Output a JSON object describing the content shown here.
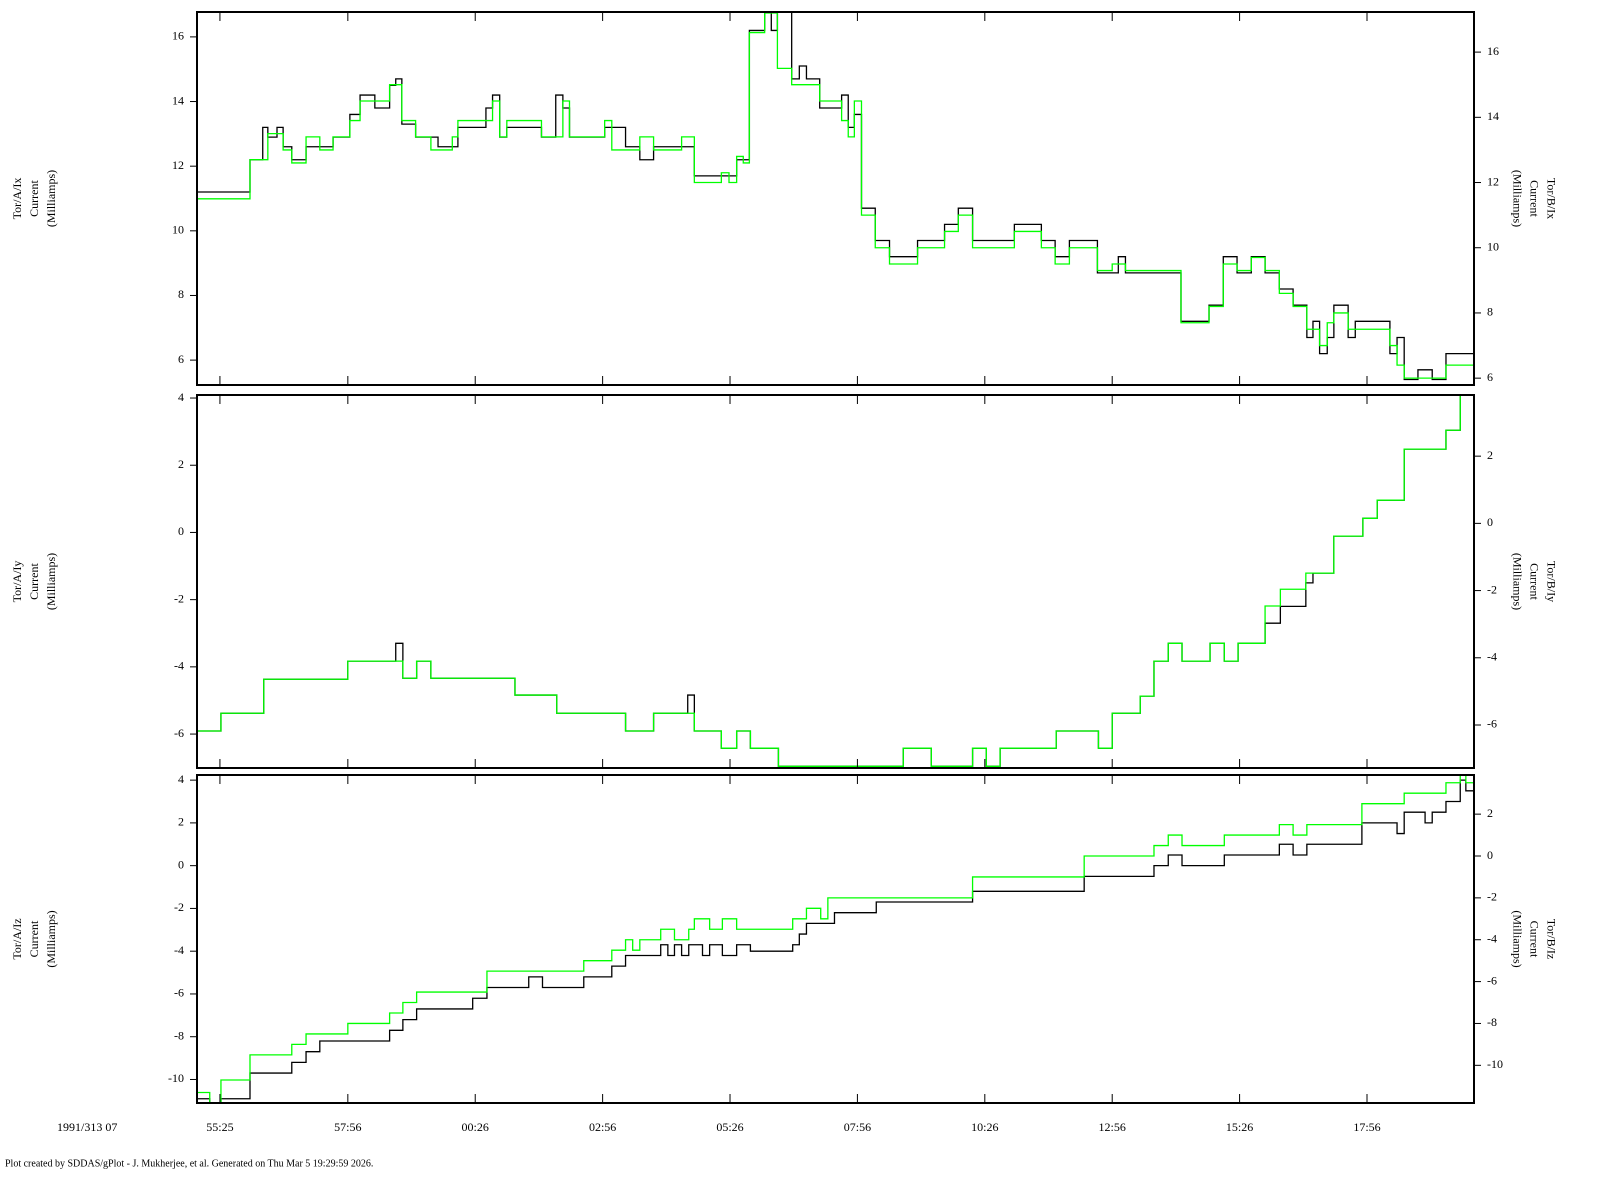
{
  "chart_data": [
    {
      "type": "line",
      "step": true,
      "ylabel": [
        "Tor/A/Ix",
        "Current",
        "(Milliamps)"
      ],
      "y2label": [
        "Tor/B/Ix",
        "Current",
        "(Milliamps)"
      ],
      "xlim": [
        54.97,
        80.03
      ],
      "ylim": [
        5.23,
        16.77
      ],
      "yticks": [
        6,
        8,
        10,
        12,
        14,
        16
      ],
      "y2lim": [
        5.79,
        17.23
      ],
      "y2ticks": [
        6,
        8,
        10,
        12,
        14,
        16
      ],
      "series": [
        {
          "color": "#000000",
          "x": [
            54.97,
            56.01,
            56.26,
            56.36,
            56.54,
            56.66,
            56.83,
            57.11,
            57.64,
            57.97,
            58.17,
            58.46,
            58.75,
            58.87,
            58.99,
            59.26,
            59.7,
            60.09,
            60.64,
            60.77,
            60.91,
            61.05,
            61.73,
            62.01,
            62.15,
            62.28,
            62.97,
            63.38,
            63.66,
            63.93,
            64.73,
            65.56,
            65.81,
            66.11,
            66.24,
            66.36,
            66.64,
            66.79,
            66.93,
            67.19,
            67.62,
            67.75,
            67.87,
            68.01,
            68.28,
            68.56,
            69.11,
            69.64,
            69.91,
            70.19,
            71.01,
            71.54,
            71.81,
            72.09,
            72.64,
            73.05,
            73.19,
            74.28,
            74.83,
            75.11,
            75.38,
            75.66,
            75.93,
            76.21,
            76.48,
            76.75,
            76.87,
            77.0,
            77.15,
            77.28,
            77.56,
            77.7,
            78.38,
            78.52,
            78.66,
            78.93,
            79.21,
            79.48,
            80.03
          ],
          "values": [
            11.2,
            12.2,
            13.2,
            12.9,
            13.2,
            12.6,
            12.2,
            12.6,
            12.9,
            13.6,
            14.2,
            13.8,
            14.5,
            14.7,
            13.3,
            12.9,
            12.6,
            13.2,
            13.8,
            14.2,
            12.9,
            13.2,
            12.9,
            14.2,
            13.8,
            12.9,
            13.2,
            12.6,
            12.2,
            12.6,
            11.7,
            12.2,
            16.2,
            16.9,
            16.2,
            16.9,
            14.7,
            15.1,
            14.7,
            13.8,
            14.2,
            13.2,
            13.6,
            10.7,
            9.7,
            9.2,
            9.7,
            10.2,
            10.7,
            9.7,
            10.2,
            9.7,
            9.2,
            9.7,
            8.7,
            9.2,
            8.7,
            7.2,
            7.7,
            9.2,
            8.7,
            9.2,
            8.7,
            8.2,
            7.7,
            6.7,
            7.2,
            6.2,
            6.7,
            7.7,
            6.7,
            7.2,
            6.2,
            6.7,
            5.4,
            5.7,
            5.4,
            6.2,
            6.2
          ]
        },
        {
          "color": "#00ff00",
          "axis": "y2",
          "x": [
            54.97,
            56.01,
            56.36,
            56.66,
            56.83,
            57.11,
            57.38,
            57.64,
            57.97,
            58.17,
            58.75,
            58.99,
            59.26,
            59.56,
            59.98,
            60.09,
            60.77,
            60.91,
            61.05,
            61.73,
            62.15,
            62.28,
            62.97,
            63.11,
            63.66,
            63.93,
            64.48,
            64.73,
            65.26,
            65.41,
            65.56,
            65.69,
            65.81,
            66.11,
            66.36,
            66.64,
            67.19,
            67.62,
            67.75,
            67.87,
            68.01,
            68.28,
            68.56,
            69.11,
            69.64,
            69.91,
            70.19,
            71.01,
            71.54,
            71.81,
            72.09,
            72.64,
            72.93,
            73.19,
            74.28,
            74.83,
            75.11,
            75.38,
            75.66,
            75.93,
            76.21,
            76.48,
            76.75,
            77.0,
            77.15,
            77.28,
            77.56,
            78.38,
            78.52,
            78.66,
            79.48,
            80.03
          ],
          "values": [
            11.5,
            12.7,
            13.5,
            13.0,
            12.6,
            13.4,
            13.0,
            13.4,
            13.9,
            14.5,
            15.0,
            13.9,
            13.4,
            13.0,
            13.4,
            13.9,
            14.5,
            13.4,
            13.9,
            13.4,
            14.5,
            13.4,
            13.9,
            13.0,
            13.4,
            13.0,
            13.4,
            12.0,
            12.3,
            12.0,
            12.8,
            12.6,
            16.6,
            17.2,
            15.5,
            15.0,
            14.5,
            13.9,
            13.4,
            14.5,
            11.0,
            10.0,
            9.5,
            10.0,
            10.5,
            11.0,
            10.0,
            10.5,
            10.0,
            9.5,
            10.0,
            9.3,
            9.5,
            9.3,
            7.7,
            8.2,
            9.5,
            9.3,
            9.7,
            9.3,
            8.6,
            8.2,
            7.5,
            7.0,
            7.7,
            8.0,
            7.5,
            7.0,
            6.4,
            6.0,
            6.4,
            6.4
          ]
        }
      ]
    },
    {
      "type": "line",
      "step": true,
      "ylabel": [
        "Tor/A/Iy",
        "Current",
        "(Milliamps)"
      ],
      "y2label": [
        "Tor/B/Iy",
        "Current",
        "(Milliamps)"
      ],
      "xlim": [
        54.97,
        80.03
      ],
      "ylim": [
        -7.01,
        4.09
      ],
      "yticks": [
        -6,
        -4,
        -2,
        0,
        2,
        4
      ],
      "y2lim": [
        -7.28,
        3.82
      ],
      "y2ticks": [
        -6,
        -4,
        -2,
        0,
        2
      ],
      "series": [
        {
          "color": "#000000",
          "x": [
            54.97,
            55.44,
            56.28,
            57.93,
            58.87,
            59.01,
            59.28,
            59.56,
            61.21,
            62.03,
            63.38,
            63.93,
            64.6,
            64.73,
            65.26,
            65.56,
            65.83,
            66.38,
            68.83,
            69.38,
            70.19,
            70.46,
            70.73,
            71.83,
            72.66,
            72.93,
            73.48,
            73.75,
            74.03,
            74.3,
            74.85,
            75.13,
            75.4,
            75.93,
            76.23,
            76.73,
            76.87,
            77.28,
            77.85,
            78.13,
            78.66,
            79.48,
            79.76,
            80.03
          ],
          "values": [
            -5.91,
            -5.38,
            -4.37,
            -3.83,
            -3.3,
            -4.34,
            -3.83,
            -4.34,
            -4.84,
            -5.38,
            -5.91,
            -5.38,
            -4.84,
            -5.91,
            -6.42,
            -5.91,
            -6.42,
            -6.96,
            -6.42,
            -6.96,
            -6.42,
            -6.96,
            -6.42,
            -5.91,
            -6.42,
            -5.38,
            -4.87,
            -3.83,
            -3.3,
            -3.83,
            -3.3,
            -3.83,
            -3.3,
            -2.7,
            -2.2,
            -1.5,
            -1.21,
            -0.11,
            0.42,
            0.96,
            2.48,
            3.04,
            4.09,
            4.09
          ]
        },
        {
          "color": "#00ff00",
          "axis": "y2",
          "x": [
            54.97,
            55.44,
            56.28,
            57.93,
            59.01,
            59.28,
            59.56,
            61.21,
            62.03,
            63.38,
            63.93,
            64.73,
            65.26,
            65.56,
            65.83,
            66.38,
            68.83,
            69.38,
            70.19,
            70.46,
            70.73,
            71.83,
            72.66,
            72.93,
            73.48,
            73.75,
            74.03,
            74.3,
            74.85,
            75.13,
            75.4,
            75.93,
            76.23,
            76.73,
            77.28,
            77.85,
            78.13,
            78.66,
            79.48,
            79.76,
            80.03
          ],
          "values": [
            -6.18,
            -5.65,
            -4.64,
            -4.1,
            -4.61,
            -4.1,
            -4.61,
            -5.11,
            -5.65,
            -6.18,
            -5.65,
            -6.18,
            -6.69,
            -6.18,
            -6.69,
            -7.23,
            -6.69,
            -7.23,
            -6.69,
            -7.23,
            -6.69,
            -6.18,
            -6.69,
            -5.65,
            -5.14,
            -4.1,
            -3.57,
            -4.1,
            -3.57,
            -4.1,
            -3.57,
            -2.46,
            -1.96,
            -1.48,
            -0.38,
            0.15,
            0.69,
            2.21,
            2.77,
            3.82,
            3.82
          ]
        }
      ]
    },
    {
      "type": "line",
      "step": true,
      "ylabel": [
        "Tor/A/Iz",
        "Current",
        "(Milliamps)"
      ],
      "y2label": [
        "Tor/B/Iz",
        "Current",
        "(Milliamps)"
      ],
      "xlim": [
        54.97,
        80.03
      ],
      "ylim": [
        -11.1,
        4.24
      ],
      "yticks": [
        -10,
        -8,
        -6,
        -4,
        -2,
        0,
        2,
        4
      ],
      "y2lim": [
        -11.8,
        3.87
      ],
      "y2ticks": [
        -10,
        -8,
        -6,
        -4,
        -2,
        0,
        2
      ],
      "xticks": [
        {
          "value": 55.42,
          "label": "55:25"
        },
        {
          "value": 57.93,
          "label": "57:56"
        },
        {
          "value": 60.43,
          "label": "00:26"
        },
        {
          "value": 62.93,
          "label": "02:56"
        },
        {
          "value": 65.43,
          "label": "05:26"
        },
        {
          "value": 67.93,
          "label": "07:56"
        },
        {
          "value": 70.43,
          "label": "10:26"
        },
        {
          "value": 72.93,
          "label": "12:56"
        },
        {
          "value": 75.43,
          "label": "15:26"
        },
        {
          "value": 77.93,
          "label": "17:56"
        }
      ],
      "series": [
        {
          "color": "#000000",
          "x": [
            54.97,
            55.22,
            55.44,
            56.01,
            56.83,
            57.11,
            57.38,
            58.75,
            59.01,
            59.28,
            60.38,
            60.66,
            61.48,
            61.75,
            62.56,
            63.11,
            63.38,
            64.07,
            64.21,
            64.34,
            64.48,
            64.62,
            64.89,
            65.03,
            65.28,
            65.56,
            65.83,
            66.66,
            66.79,
            66.93,
            67.48,
            68.3,
            70.19,
            72.38,
            73.75,
            74.03,
            74.3,
            75.13,
            76.21,
            76.48,
            76.75,
            77.83,
            78.52,
            78.66,
            79.07,
            79.21,
            79.48,
            79.76,
            79.87,
            80.03
          ],
          "values": [
            -10.9,
            -11.2,
            -10.9,
            -9.7,
            -9.2,
            -8.7,
            -8.2,
            -7.7,
            -7.2,
            -6.7,
            -6.2,
            -5.7,
            -5.2,
            -5.7,
            -5.2,
            -4.7,
            -4.2,
            -3.7,
            -4.2,
            -3.7,
            -4.2,
            -3.7,
            -4.2,
            -3.7,
            -4.2,
            -3.7,
            -4.0,
            -3.7,
            -3.2,
            -2.7,
            -2.2,
            -1.7,
            -1.2,
            -0.5,
            0.0,
            0.5,
            0.0,
            0.5,
            1.0,
            0.5,
            1.0,
            2.0,
            1.5,
            2.5,
            2.0,
            2.5,
            3.0,
            4.0,
            3.5,
            3.5
          ]
        },
        {
          "color": "#00ff00",
          "axis": "y2",
          "x": [
            54.97,
            55.22,
            55.44,
            56.01,
            56.83,
            57.11,
            57.93,
            58.75,
            59.01,
            59.28,
            60.66,
            62.56,
            63.11,
            63.38,
            63.52,
            63.66,
            64.07,
            64.34,
            64.62,
            64.73,
            65.03,
            65.28,
            65.56,
            66.66,
            66.93,
            67.21,
            67.35,
            70.19,
            72.38,
            73.75,
            74.03,
            74.3,
            75.13,
            76.21,
            76.48,
            76.75,
            77.83,
            78.66,
            79.48,
            79.76,
            79.87,
            80.03
          ],
          "values": [
            -11.3,
            -11.8,
            -10.7,
            -9.5,
            -9.0,
            -8.5,
            -8.0,
            -7.5,
            -7.0,
            -6.5,
            -5.5,
            -5.0,
            -4.5,
            -4.0,
            -4.5,
            -4.0,
            -3.5,
            -4.0,
            -3.5,
            -3.0,
            -3.5,
            -3.0,
            -3.5,
            -3.0,
            -2.5,
            -3.0,
            -2.0,
            -1.0,
            0.0,
            0.5,
            1.0,
            0.5,
            1.0,
            1.5,
            1.0,
            1.5,
            2.5,
            3.0,
            3.5,
            4.0,
            3.5,
            3.5
          ]
        }
      ]
    }
  ],
  "time_label": "1991/313 07",
  "footer": "Plot created by SDDAS/gPlot - J. Mukherjee, et al.  Generated on Thu Mar 5 19:29:59 2026."
}
